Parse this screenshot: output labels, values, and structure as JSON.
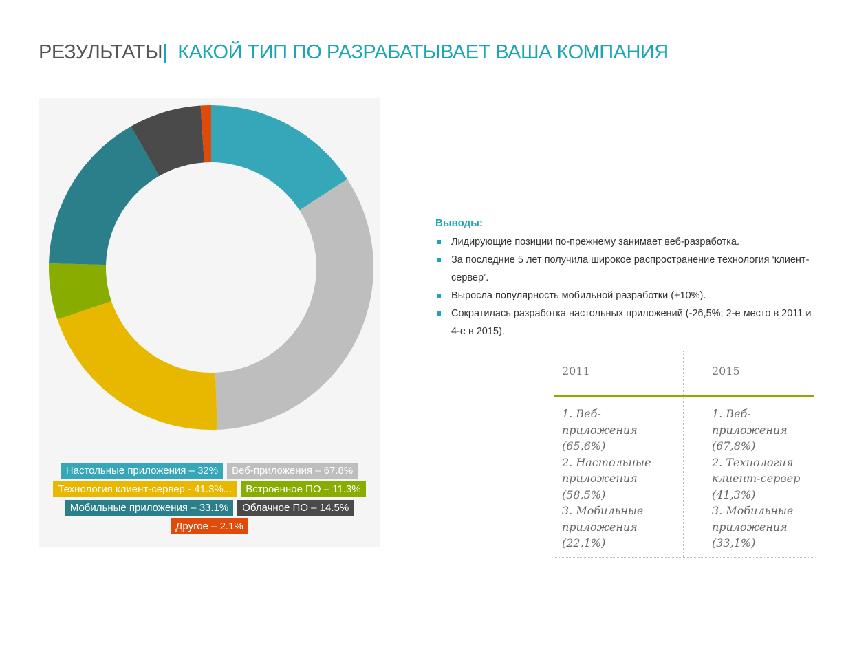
{
  "header": {
    "title_left": "РЕЗУЛЬТАТЫ",
    "separator": "|",
    "title_right": "КАКОЙ ТИП ПО РАЗРАБАТЫВАЕТ ВАША КОМПАНИЯ"
  },
  "chart_data": {
    "type": "donut",
    "categories": [
      "Настольные приложения – 32%",
      "Веб-приложения – 67.8%",
      "Технология клиент-сервер - 41.3%...",
      "Встроенное ПО – 11.3%",
      "Мобильные приложения – 33.1%",
      "Облачное ПО – 14.5%",
      "Другое – 2.1%"
    ],
    "values": [
      32,
      67.8,
      41.3,
      11.3,
      33.1,
      14.5,
      2.1
    ],
    "colors": [
      "#35a7b8",
      "#bebebe",
      "#e8b800",
      "#88ac00",
      "#2a7f8a",
      "#4a4a4a",
      "#e04a0a"
    ]
  },
  "conclusions": {
    "heading": "Выводы:",
    "items": [
      "Лидирующие  позиции по-прежнему  занимает веб-разработка.",
      "За последние 5 лет  получила широкое распространение технология ‘клиент-сервер’.",
      "Выросла популярность мобильной разработки (+10%).",
      "Сократилась разработка настольных приложений (-26,5%; 2-е  место в 2011 и 4-е в 2015)."
    ]
  },
  "table": {
    "headers": [
      "2011",
      "2015"
    ],
    "rows": [
      [
        [
          "1. Веб-приложения (65,6%)",
          "2. Настольные приложения (58,5%)",
          "3. Мобильные приложения (22,1%)"
        ],
        [
          "1. Веб-приложения (67,8%)",
          "2. Технология клиент-сервер (41,3%)",
          "3. Мобильные приложения (33,1%)"
        ]
      ]
    ]
  }
}
